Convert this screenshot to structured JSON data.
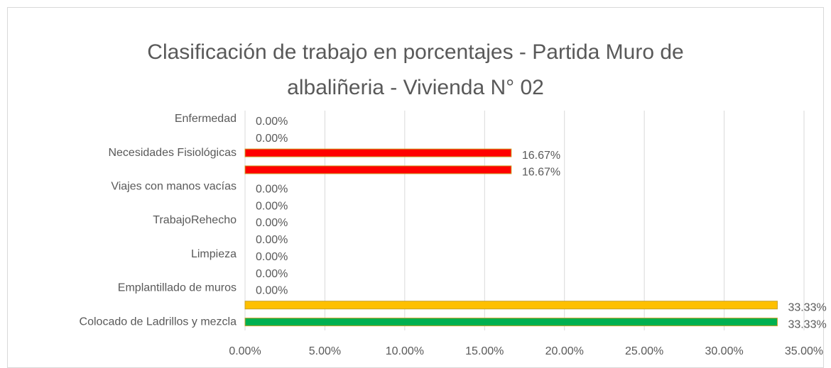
{
  "chart_data": {
    "type": "barh",
    "title": [
      "Clasificación de trabajo en porcentajes - Partida Muro de",
      "albaliñeria - Vivienda N° 02"
    ],
    "categories": [
      "Enfermedad",
      null,
      "Necesidades Fisiológicas",
      null,
      "Viajes con manos vacías",
      null,
      "TrabajoRehecho",
      null,
      "Limpieza",
      null,
      "Emplantillado de muros",
      null,
      "Colocado de Ladrillos y mezcla"
    ],
    "values": [
      0,
      0,
      16.67,
      16.67,
      0,
      0,
      0,
      0,
      0,
      0,
      0,
      33.33,
      33.33
    ],
    "value_labels": [
      "0.00%",
      "0.00%",
      "16.67%",
      "16.67%",
      "0.00%",
      "0.00%",
      "0.00%",
      "0.00%",
      "0.00%",
      "0.00%",
      "0.00%",
      "33.33%",
      "33.33%"
    ],
    "colors": [
      null,
      null,
      "#ff0000",
      "#ff0000",
      null,
      null,
      null,
      null,
      null,
      null,
      null,
      "#ffc000",
      "#00b050"
    ],
    "xlim": [
      0,
      35
    ],
    "xticks": [
      {
        "value": 0,
        "label": "0.00%"
      },
      {
        "value": 5,
        "label": "5.00%"
      },
      {
        "value": 10,
        "label": "10.00%"
      },
      {
        "value": 15,
        "label": "15.00%"
      },
      {
        "value": 20,
        "label": "20.00%"
      },
      {
        "value": 25,
        "label": "25.00%"
      },
      {
        "value": 30,
        "label": "30.00%"
      },
      {
        "value": 35,
        "label": "35.00%"
      }
    ],
    "grid": true
  }
}
